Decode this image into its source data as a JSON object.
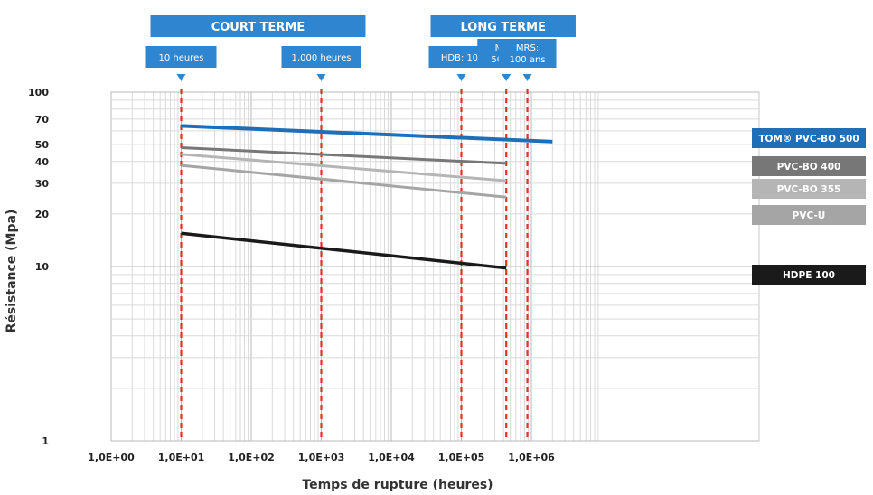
{
  "chart_data": {
    "type": "line",
    "title": "",
    "xlabel": "Temps de rupture (heures)",
    "ylabel": "Résistance (Mpa)",
    "xscale": "log",
    "yscale": "log",
    "xlim": [
      1,
      3000000
    ],
    "ylim": [
      1,
      100
    ],
    "grid": true,
    "x_tick_labels": [
      "1,0E+00",
      "1,0E+01",
      "1,0E+02",
      "1,0E+03",
      "1,0E+04",
      "1,0E+05",
      "1,0E+06"
    ],
    "x_tick_values": [
      1,
      10,
      100,
      1000,
      10000,
      100000,
      1000000
    ],
    "y_tick_labels": [
      "1",
      "10",
      "20",
      "30",
      "40",
      "50",
      "70",
      "100"
    ],
    "y_tick_values": [
      1,
      10,
      20,
      30,
      40,
      50,
      70,
      100
    ],
    "series": [
      {
        "name": "TOM® PVC-BO 500",
        "color": "#1e6fb8",
        "x": [
          10,
          2000000
        ],
        "y": [
          64,
          52
        ]
      },
      {
        "name": "PVC-BO 400",
        "color": "#777777",
        "x": [
          10,
          438000
        ],
        "y": [
          48,
          39
        ]
      },
      {
        "name": "PVC-BO 355",
        "color": "#b5b5b5",
        "x": [
          10,
          438000
        ],
        "y": [
          44,
          31
        ]
      },
      {
        "name": "PVC-U",
        "color": "#a5a5a5",
        "x": [
          10,
          438000
        ],
        "y": [
          38,
          25
        ]
      },
      {
        "name": "HDPE 100",
        "color": "#1a1a1a",
        "x": [
          10,
          438000
        ],
        "y": [
          15.5,
          9.8
        ]
      }
    ],
    "reference_lines": [
      {
        "label": "10 heures",
        "x": 10
      },
      {
        "label": "1,000 heures",
        "x": 1000
      },
      {
        "label": "HDB: 10⁵",
        "x": 100000
      },
      {
        "label": "MRS: 50 ans",
        "x": 438000
      },
      {
        "label": "MRS: 100 ans",
        "x": 876000
      }
    ],
    "region_labels": [
      {
        "label": "COURT TERME",
        "x_from": 10,
        "x_to": 3000
      },
      {
        "label": "LONG TERME",
        "x_from": 100000,
        "x_to": 3000000
      }
    ],
    "legend_position": "right",
    "colors": {
      "accent": "#2e86d1",
      "marker": "#2e86d1",
      "reference_line": "#e03324"
    }
  }
}
